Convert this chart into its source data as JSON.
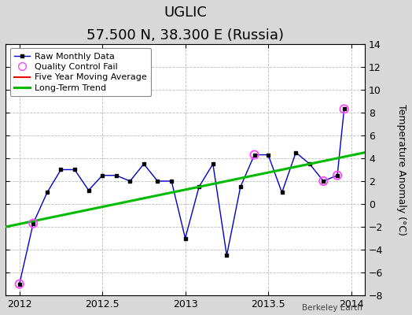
{
  "title": "UGLIC",
  "subtitle": "57.500 N, 38.300 E (Russia)",
  "ylabel": "Temperature Anomaly (°C)",
  "watermark": "Berkeley Earth",
  "xlim": [
    2011.917,
    2014.083
  ],
  "ylim": [
    -8,
    14
  ],
  "yticks": [
    -8,
    -6,
    -4,
    -2,
    0,
    2,
    4,
    6,
    8,
    10,
    12,
    14
  ],
  "xticks": [
    2012,
    2012.5,
    2013,
    2013.5,
    2014
  ],
  "xticklabels": [
    "2012",
    "2012.5",
    "2013",
    "2013.5",
    "2014"
  ],
  "raw_x": [
    2012.0,
    2012.083,
    2012.167,
    2012.25,
    2012.333,
    2012.417,
    2012.5,
    2012.583,
    2012.667,
    2012.75,
    2012.833,
    2012.917,
    2013.0,
    2013.083,
    2013.167,
    2013.25,
    2013.333,
    2013.417,
    2013.5,
    2013.583,
    2013.667,
    2013.75,
    2013.833,
    2013.917,
    2013.958
  ],
  "raw_y": [
    -7.0,
    -1.7,
    1.0,
    3.0,
    3.0,
    1.2,
    2.5,
    2.5,
    2.0,
    3.5,
    2.0,
    2.0,
    -3.0,
    1.5,
    3.5,
    -4.5,
    1.5,
    4.3,
    4.3,
    1.0,
    4.5,
    3.5,
    2.0,
    2.5,
    8.3
  ],
  "qc_fail_x": [
    2012.0,
    2012.083,
    2013.417,
    2013.833,
    2013.917,
    2013.958
  ],
  "qc_fail_y": [
    -7.0,
    -1.7,
    4.3,
    2.0,
    2.5,
    8.3
  ],
  "trend_x": [
    2011.917,
    2014.083
  ],
  "trend_y": [
    -2.0,
    4.5
  ],
  "raw_line_color": "#0000cc",
  "raw_marker_color": "#000000",
  "qc_marker_color": "#ff44ff",
  "trend_color": "#00bb00",
  "fiveyr_color": "#ff0000",
  "background_color": "#d8d8d8",
  "plot_bg_color": "#ffffff",
  "grid_color": "#bbbbbb",
  "title_fontsize": 13,
  "subtitle_fontsize": 10,
  "axis_label_fontsize": 9,
  "tick_fontsize": 9,
  "legend_fontsize": 8
}
